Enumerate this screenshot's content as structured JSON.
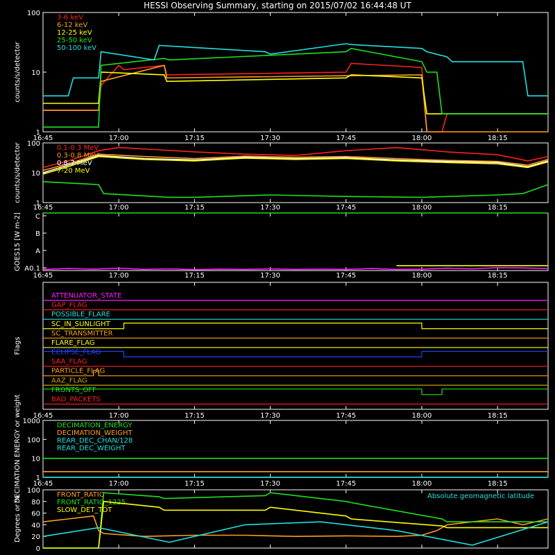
{
  "title": "HESSI Observing Summary, starting on 2015/07/02 16:44:48 UT",
  "time_ticks": [
    "16:45",
    "17:00",
    "17:15",
    "17:30",
    "17:45",
    "18:00",
    "18:15"
  ],
  "chart_data": [
    {
      "type": "line",
      "name": "low-energy-rates",
      "ylabel": "counts/s/detector",
      "yscale": "log",
      "ylim": [
        1,
        100
      ],
      "ytick_labels": [
        "1",
        "10",
        "100"
      ],
      "xlim_min": [
        0,
        100
      ],
      "series": [
        {
          "name": "3-6 keV",
          "color": "#ff2020",
          "t": [
            0,
            11,
            11.5,
            15,
            16,
            24,
            24.5,
            60,
            61,
            75,
            76,
            79,
            80,
            100
          ],
          "v": [
            2.3,
            2.3,
            6,
            13,
            11,
            13,
            9,
            10,
            14,
            12,
            1,
            1,
            2,
            2
          ]
        },
        {
          "name": "6-12 keV",
          "color": "#ff9f1f",
          "t": [
            0,
            11,
            11.5,
            24,
            24.5,
            75,
            76,
            79,
            80,
            100
          ],
          "v": [
            2.3,
            2.3,
            7,
            13,
            8,
            9,
            1,
            1,
            1,
            1
          ]
        },
        {
          "name": "12-25 keV",
          "color": "#ffff00",
          "t": [
            0,
            11,
            11.5,
            24,
            24.5,
            60,
            61,
            75,
            76,
            100
          ],
          "v": [
            3,
            3,
            10,
            9,
            7,
            8,
            9,
            8,
            2,
            2
          ]
        },
        {
          "name": "25-50 keV",
          "color": "#20e020",
          "t": [
            0,
            11,
            11.5,
            24,
            25,
            60,
            61,
            75,
            76,
            78,
            79,
            100
          ],
          "v": [
            1.2,
            1.2,
            13,
            17,
            16,
            22,
            25,
            15,
            10,
            10,
            2,
            2
          ]
        },
        {
          "name": "50-100 keV",
          "color": "#20e0e0",
          "t": [
            0,
            5,
            6,
            11,
            11.5,
            22,
            23,
            44,
            45,
            60,
            61,
            75,
            76,
            80,
            81,
            95,
            96,
            100
          ],
          "v": [
            4,
            4,
            8,
            8,
            22,
            16,
            28,
            22,
            20,
            30,
            29,
            25,
            22,
            18,
            15,
            15,
            4,
            4
          ]
        }
      ]
    },
    {
      "type": "line",
      "name": "high-energy-rates",
      "ylabel": "counts/s/detector",
      "yscale": "log",
      "ylim": [
        1,
        100
      ],
      "ytick_labels": [
        "1",
        "10",
        "100"
      ],
      "series": [
        {
          "name": "0.1-0.3 MeV",
          "color": "#ff2020",
          "t": [
            0,
            5,
            11,
            15,
            22,
            30,
            40,
            50,
            60,
            70,
            80,
            90,
            96,
            100
          ],
          "v": [
            15,
            25,
            55,
            70,
            60,
            50,
            42,
            38,
            55,
            70,
            50,
            40,
            25,
            35
          ]
        },
        {
          "name": "0.3-0.8 MeV",
          "color": "#ff9f1f",
          "t": [
            0,
            5,
            11,
            20,
            30,
            40,
            50,
            60,
            70,
            80,
            90,
            96,
            100
          ],
          "v": [
            12,
            20,
            42,
            35,
            30,
            36,
            33,
            35,
            30,
            26,
            24,
            18,
            28
          ]
        },
        {
          "name": "0.8-7 MeV",
          "color": "#ffffff",
          "t": [
            0,
            5,
            11,
            20,
            30,
            40,
            50,
            60,
            70,
            80,
            90,
            96,
            100
          ],
          "v": [
            10,
            18,
            38,
            30,
            27,
            33,
            30,
            32,
            27,
            24,
            22,
            16,
            25
          ]
        },
        {
          "name": "7-20 MeV",
          "color": "#ffff00",
          "t": [
            0,
            5,
            11,
            20,
            30,
            40,
            50,
            60,
            70,
            80,
            90,
            96,
            100
          ],
          "v": [
            9,
            16,
            35,
            28,
            25,
            31,
            28,
            30,
            25,
            22,
            20,
            15,
            23
          ]
        },
        {
          "name": "",
          "color": "#20e020",
          "t": [
            0,
            11,
            12,
            25,
            30,
            45,
            60,
            75,
            90,
            95,
            100
          ],
          "v": [
            5,
            4,
            2,
            1.5,
            1.5,
            1.8,
            1.6,
            1.5,
            1.8,
            2,
            4
          ]
        }
      ]
    },
    {
      "type": "line",
      "name": "goes15",
      "ylabel": "GOES15 [W m-2]",
      "ylim": [
        0.1,
        10
      ],
      "ytick_labels": [
        "C",
        "B",
        "A",
        "A0.1"
      ],
      "series": [
        {
          "name": "",
          "color": "#ff20ff",
          "t": [
            0,
            5,
            10,
            15,
            20,
            25,
            30,
            35,
            40,
            45,
            50,
            55,
            60,
            65,
            70,
            75,
            80,
            85,
            90,
            95,
            100
          ],
          "v": [
            0.3,
            0.45,
            0.35,
            0.5,
            0.3,
            0.4,
            0.25,
            0.35,
            0.3,
            0.4,
            0.3,
            0.35,
            0.3,
            0.45,
            0.3,
            0.35,
            0.5,
            0.4,
            0.6,
            0.55,
            0.45
          ]
        },
        {
          "name": "",
          "color": "#ffff00",
          "t": [
            70,
            100
          ],
          "v": [
            0.95,
            0.95
          ]
        },
        {
          "name": "",
          "color": "#20e020",
          "t": [
            0,
            100
          ],
          "v": [
            10,
            10
          ]
        }
      ]
    },
    {
      "type": "table",
      "name": "flags",
      "ylabel": "Flags",
      "rows": [
        {
          "label": "ATTENUATOR_STATE",
          "color": "#ff20ff",
          "changes": []
        },
        {
          "label": "GAP_FLAG",
          "color": "#ff2020",
          "changes": []
        },
        {
          "label": "POSSIBLE_FLARE",
          "color": "#20e0e0",
          "changes": []
        },
        {
          "label": "SC_IN_SUNLIGHT",
          "color": "#ffff00",
          "changes": [
            [
              0,
              0
            ],
            [
              16,
              1
            ],
            [
              75,
              0
            ],
            [
              100,
              0
            ]
          ]
        },
        {
          "label": "SC_TRANSMITTER",
          "color": "#ff9f1f",
          "changes": []
        },
        {
          "label": "FLARE_FLAG",
          "color": "#ffff00",
          "changes": []
        },
        {
          "label": "ECLIPSE_FLAG",
          "color": "#2040ff",
          "changes": [
            [
              0,
              1
            ],
            [
              16,
              0
            ],
            [
              75,
              1
            ],
            [
              100,
              1
            ]
          ]
        },
        {
          "label": "SAA_FLAG",
          "color": "#ff2020",
          "changes": []
        },
        {
          "label": "PARTICLE_FLAG",
          "color": "#ff9f1f",
          "changes": [
            [
              0,
              0
            ],
            [
              10,
              1
            ],
            [
              11,
              0
            ],
            [
              100,
              0
            ]
          ]
        },
        {
          "label": "AAZ_FLAG",
          "color": "#c8a000",
          "changes": []
        },
        {
          "label": "FRONTS_OFF",
          "color": "#20e020",
          "changes": [
            [
              0,
              1
            ],
            [
              75,
              0
            ],
            [
              79,
              1
            ],
            [
              100,
              1
            ]
          ]
        },
        {
          "label": "BAD_PACKETS",
          "color": "#ff2020",
          "changes": []
        }
      ]
    },
    {
      "type": "line",
      "name": "decimation",
      "ylabel": "DECIMATION ENERGY or weight",
      "yscale": "log",
      "ylim": [
        1,
        1000
      ],
      "ytick_labels": [
        "1",
        "10",
        "100",
        "1000"
      ],
      "series": [
        {
          "name": "DECIMATION_ENERGY",
          "color": "#20e020",
          "t": [
            0,
            100
          ],
          "v": [
            10,
            10
          ]
        },
        {
          "name": "DECIMATION_WEIGHT",
          "color": "#ff9f1f",
          "t": [
            0,
            100
          ],
          "v": [
            2,
            2
          ]
        },
        {
          "name": "REAR_DEC_CHAN/128",
          "color": "#20e0e0",
          "t": [
            0,
            100
          ],
          "v": [
            1,
            1
          ]
        },
        {
          "name": "REAR_DEC_WEIGHT",
          "color": "#20e0e0",
          "t": [
            0,
            100
          ],
          "v": [
            1,
            1
          ]
        }
      ]
    },
    {
      "type": "line",
      "name": "ratios",
      "ylabel": "Degrees or %",
      "ylim": [
        0,
        100
      ],
      "ytick_labels": [
        "0",
        "20",
        "40",
        "60",
        "80",
        "100"
      ],
      "annotation": "Absolute geomagnetic latitude",
      "series": [
        {
          "name": "FRONT_RATIO",
          "color": "#ff9f1f",
          "t": [
            0,
            5,
            10,
            11,
            12,
            20,
            30,
            40,
            50,
            60,
            70,
            75,
            78,
            80,
            85,
            90,
            95,
            100
          ],
          "v": [
            45,
            50,
            55,
            30,
            25,
            20,
            22,
            22,
            20,
            21,
            20,
            22,
            30,
            40,
            45,
            50,
            40,
            50
          ]
        },
        {
          "name": "FRONT_RATIO_1225",
          "color": "#20e020",
          "t": [
            0,
            11,
            12,
            23,
            24,
            44,
            45,
            60,
            61,
            79,
            80,
            100
          ],
          "v": [
            0,
            0,
            95,
            88,
            85,
            90,
            95,
            80,
            78,
            50,
            45,
            45
          ]
        },
        {
          "name": "SLOW_DET_TOT",
          "color": "#ffff00",
          "t": [
            0,
            11,
            12,
            23,
            24,
            44,
            45,
            60,
            61,
            79,
            80,
            100
          ],
          "v": [
            0,
            0,
            80,
            70,
            65,
            65,
            70,
            55,
            50,
            38,
            35,
            35
          ]
        },
        {
          "name": "",
          "color": "#20e0e0",
          "t": [
            0,
            11,
            25,
            40,
            55,
            70,
            85,
            100
          ],
          "v": [
            20,
            35,
            10,
            40,
            45,
            30,
            5,
            45
          ]
        }
      ]
    }
  ]
}
